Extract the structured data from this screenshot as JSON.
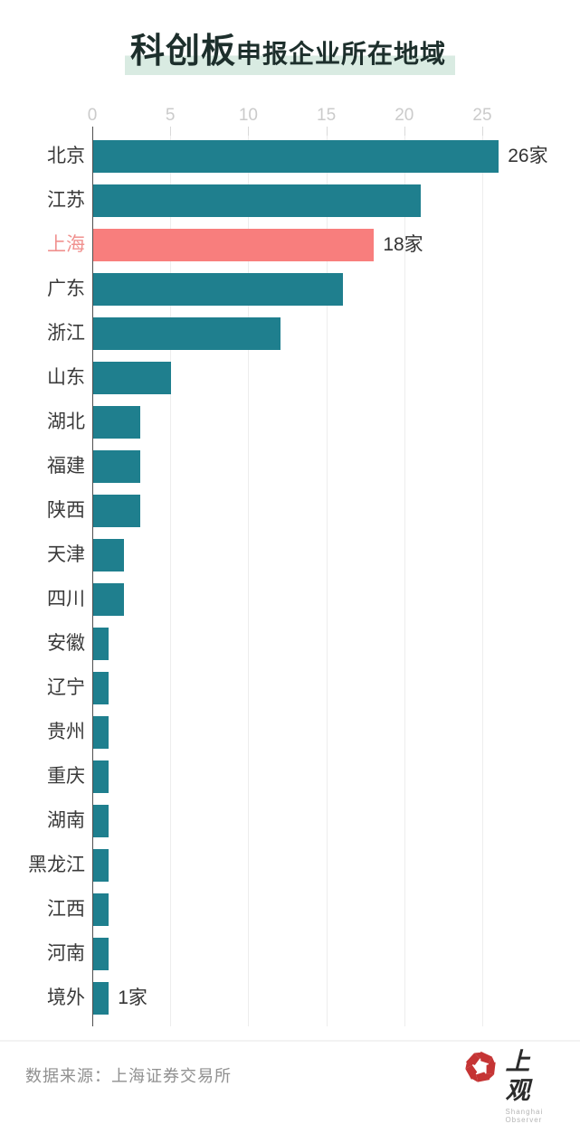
{
  "title": {
    "emphasis": "科创板",
    "rest": "申报企业所在地域"
  },
  "chart_data": {
    "type": "bar",
    "orientation": "horizontal",
    "title": "科创板申报企业所在地域",
    "categories": [
      "北京",
      "江苏",
      "上海",
      "广东",
      "浙江",
      "山东",
      "湖北",
      "福建",
      "陕西",
      "天津",
      "四川",
      "安徽",
      "辽宁",
      "贵州",
      "重庆",
      "湖南",
      "黑龙江",
      "江西",
      "河南",
      "境外"
    ],
    "values": [
      26,
      21,
      18,
      16,
      12,
      5,
      3,
      3,
      3,
      2,
      2,
      1,
      1,
      1,
      1,
      1,
      1,
      1,
      1,
      1
    ],
    "unit_suffix": "家",
    "bar_labels": {
      "北京": "26家",
      "上海": "18家",
      "境外": "1家"
    },
    "highlight_category": "上海",
    "axis_ticks": [
      "0",
      "5",
      "10",
      "15",
      "20",
      "25"
    ],
    "xlim": [
      0,
      26.5
    ],
    "grid": true,
    "legend": false,
    "colors": {
      "bar": "#1f7f8e",
      "highlight_bar": "#f87e7d",
      "highlight_label": "#f0918f",
      "tick_label": "#cbcbcb",
      "grid_line": "#ededed",
      "axis_line": "#4f4f4f",
      "title_highlight": "#d9ebe2"
    }
  },
  "footer": {
    "source": "数据来源：上海证券交易所",
    "logo_text": "上 观",
    "logo_subtext": "Shanghai Observer",
    "logo_color": "#c53434"
  }
}
